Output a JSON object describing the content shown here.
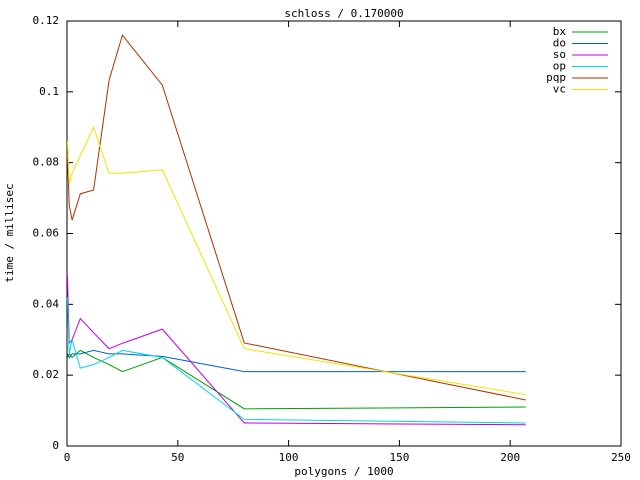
{
  "chart_data": {
    "type": "line",
    "title": "schloss / 0.170000",
    "x_label": "polygons / 1000",
    "y_label": "time / millisec",
    "x": [
      0.2,
      1,
      2.3,
      6,
      12,
      19,
      25,
      43,
      80,
      207
    ],
    "series": [
      {
        "name": "bx",
        "color": "#00a000",
        "values": [
          0.025,
          0.026,
          0.025,
          0.027,
          0.025,
          0.023,
          0.021,
          0.025,
          0.0105,
          0.011
        ]
      },
      {
        "name": "do",
        "color": "#0060d0",
        "values": [
          0.026,
          0.025,
          0.026,
          0.026,
          0.027,
          0.026,
          0.026,
          0.0253,
          0.021,
          0.021
        ]
      },
      {
        "name": "so",
        "color": "#c000e0",
        "values": [
          0.048,
          0.029,
          0.03,
          0.036,
          0.032,
          0.0275,
          0.029,
          0.033,
          0.0065,
          0.006
        ]
      },
      {
        "name": "op",
        "color": "#00dada",
        "values": [
          0.042,
          0.026,
          0.03,
          0.022,
          0.023,
          0.025,
          0.027,
          0.025,
          0.0075,
          0.0065
        ]
      },
      {
        "name": "pqp",
        "color": "#b03000",
        "values": [
          0.0822,
          0.068,
          0.0638,
          0.0712,
          0.0723,
          0.1033,
          0.116,
          0.1019,
          0.0291,
          0.013
        ]
      },
      {
        "name": "vc",
        "color": "#e8e800",
        "values": [
          0.086,
          0.074,
          0.077,
          0.082,
          0.09,
          0.077,
          0.077,
          0.078,
          0.0275,
          0.0145
        ]
      }
    ],
    "xlim": [
      0,
      250
    ],
    "xticks": [
      0,
      50,
      100,
      150,
      200,
      250
    ],
    "ylim": [
      0,
      0.12
    ],
    "yticks": [
      0,
      0.02,
      0.04,
      0.06,
      0.08,
      0.1,
      0.12
    ],
    "grid": false,
    "legend": "top-right"
  }
}
